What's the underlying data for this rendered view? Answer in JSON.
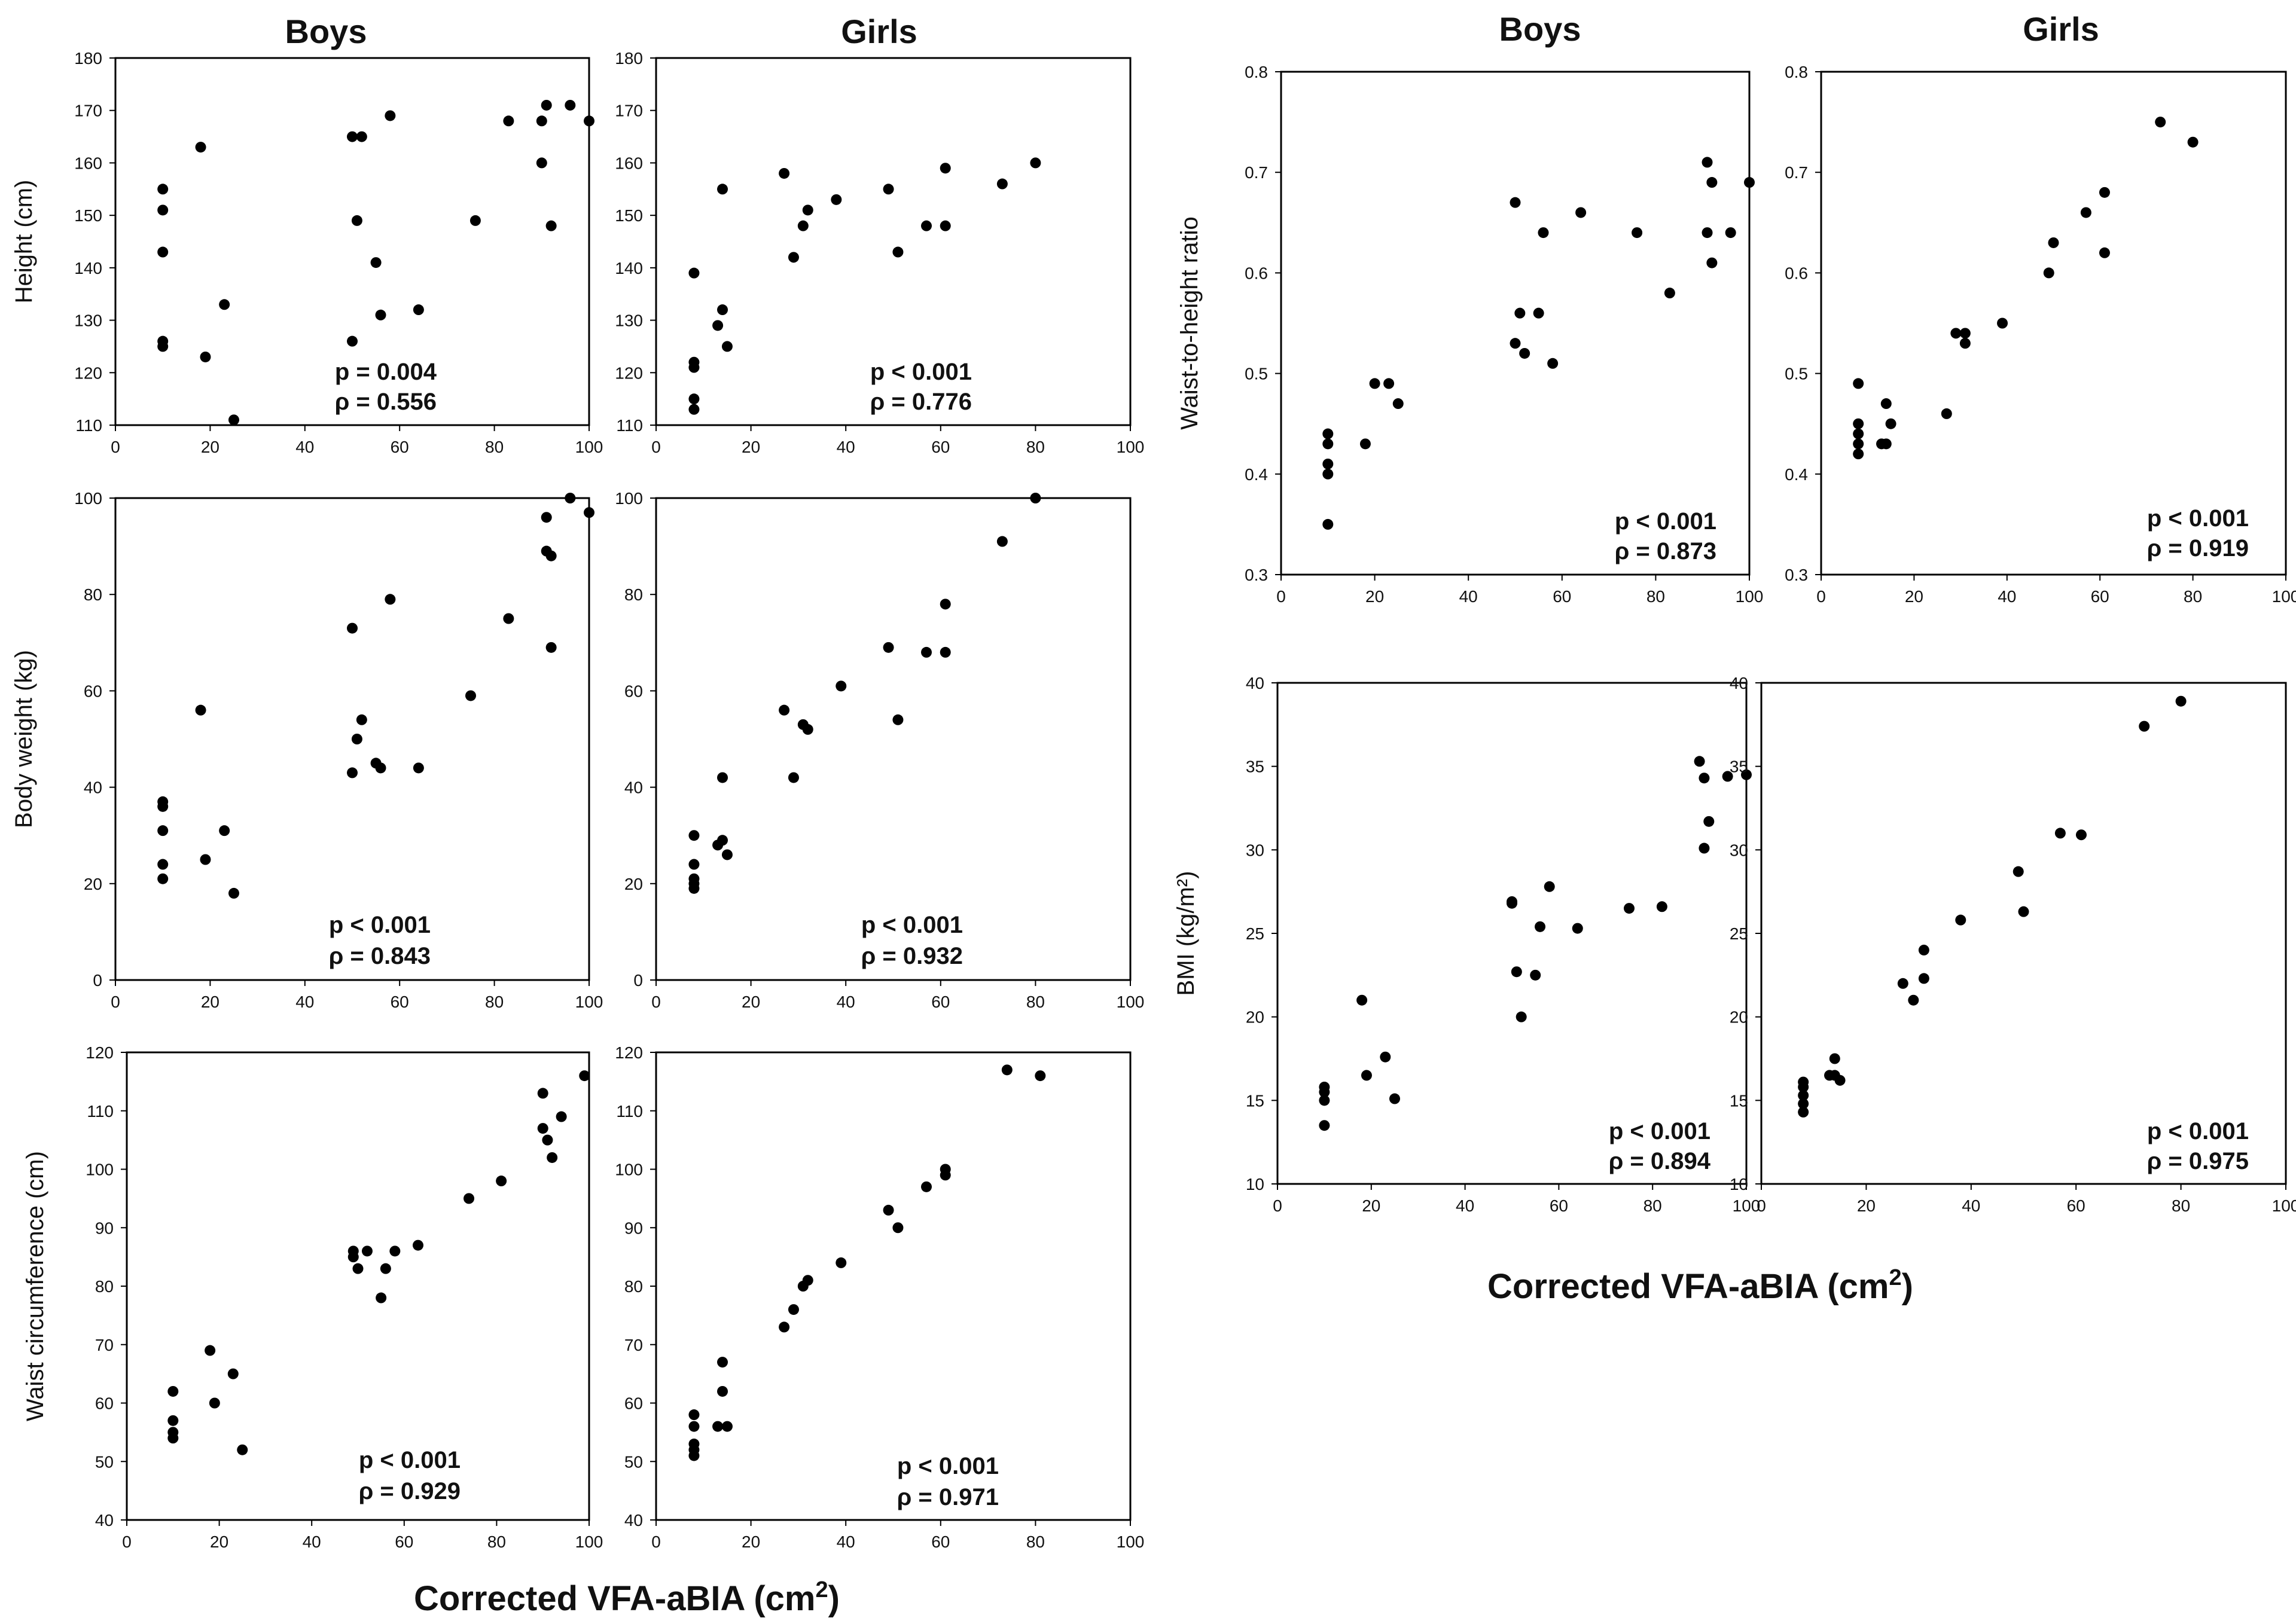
{
  "figure": {
    "column_titles": [
      {
        "boys": "Boys",
        "girls": "Girls"
      },
      {
        "boys": "Boys",
        "girls": "Girls"
      }
    ],
    "xlabels": [
      "Corrected VFA-aBIA (cm",
      "Corrected VFA-aBIA (cm"
    ],
    "xlabel_sup": "2",
    "xlabel_close": ")",
    "marker_color": "#000000",
    "frame_color": "#000000"
  },
  "chart_data": [
    {
      "id": "height-boys",
      "type": "scatter",
      "title": "Boys",
      "xlabel": "",
      "ylabel": "Height (cm)",
      "xlim": [
        0,
        100
      ],
      "ylim": [
        110,
        180
      ],
      "xticks": [
        0,
        20,
        40,
        60,
        80,
        100
      ],
      "yticks": [
        110,
        120,
        130,
        140,
        150,
        160,
        170,
        180
      ],
      "stat_p": "p = 0.004",
      "stat_rho": "ρ = 0.556",
      "points": [
        [
          10,
          155
        ],
        [
          10,
          151
        ],
        [
          10,
          143
        ],
        [
          10,
          126
        ],
        [
          10,
          125
        ],
        [
          18,
          163
        ],
        [
          19,
          123
        ],
        [
          23,
          133
        ],
        [
          25,
          111
        ],
        [
          50,
          165
        ],
        [
          50,
          126
        ],
        [
          51,
          149
        ],
        [
          52,
          165
        ],
        [
          55,
          141
        ],
        [
          56,
          131
        ],
        [
          58,
          169
        ],
        [
          64,
          132
        ],
        [
          76,
          149
        ],
        [
          83,
          168
        ],
        [
          90,
          168
        ],
        [
          90,
          160
        ],
        [
          91,
          171
        ],
        [
          92,
          148
        ],
        [
          96,
          171
        ],
        [
          100,
          168
        ]
      ]
    },
    {
      "id": "height-girls",
      "type": "scatter",
      "title": "Girls",
      "xlabel": "",
      "ylabel": "",
      "xlim": [
        0,
        100
      ],
      "ylim": [
        110,
        180
      ],
      "xticks": [
        0,
        20,
        40,
        60,
        80,
        100
      ],
      "yticks": [
        110,
        120,
        130,
        140,
        150,
        160,
        170,
        180
      ],
      "stat_p": "p < 0.001",
      "stat_rho": "ρ = 0.776",
      "points": [
        [
          8,
          139
        ],
        [
          8,
          122
        ],
        [
          8,
          121
        ],
        [
          8,
          115
        ],
        [
          8,
          113
        ],
        [
          13,
          129
        ],
        [
          14,
          155
        ],
        [
          14,
          132
        ],
        [
          15,
          125
        ],
        [
          27,
          158
        ],
        [
          29,
          142
        ],
        [
          31,
          148
        ],
        [
          32,
          151
        ],
        [
          38,
          153
        ],
        [
          49,
          155
        ],
        [
          51,
          143
        ],
        [
          57,
          148
        ],
        [
          61,
          159
        ],
        [
          61,
          148
        ],
        [
          73,
          156
        ],
        [
          80,
          160
        ]
      ]
    },
    {
      "id": "weight-boys",
      "type": "scatter",
      "title": "",
      "xlabel": "",
      "ylabel": "Body weight (kg)",
      "xlim": [
        0,
        100
      ],
      "ylim": [
        0,
        100
      ],
      "xticks": [
        0,
        20,
        40,
        60,
        80,
        100
      ],
      "yticks": [
        0,
        20,
        40,
        60,
        80,
        100
      ],
      "stat_p": "p < 0.001",
      "stat_rho": "ρ = 0.843",
      "points": [
        [
          10,
          37
        ],
        [
          10,
          36
        ],
        [
          10,
          31
        ],
        [
          10,
          24
        ],
        [
          10,
          21
        ],
        [
          18,
          56
        ],
        [
          19,
          25
        ],
        [
          23,
          31
        ],
        [
          25,
          18
        ],
        [
          50,
          73
        ],
        [
          50,
          43
        ],
        [
          51,
          50
        ],
        [
          52,
          54
        ],
        [
          55,
          45
        ],
        [
          56,
          44
        ],
        [
          58,
          79
        ],
        [
          64,
          44
        ],
        [
          75,
          59
        ],
        [
          83,
          75
        ],
        [
          91,
          96
        ],
        [
          91,
          89
        ],
        [
          92,
          88
        ],
        [
          92,
          69
        ],
        [
          96,
          100
        ],
        [
          100,
          97
        ]
      ]
    },
    {
      "id": "weight-girls",
      "type": "scatter",
      "title": "",
      "xlabel": "",
      "ylabel": "",
      "xlim": [
        0,
        100
      ],
      "ylim": [
        0,
        100
      ],
      "xticks": [
        0,
        20,
        40,
        60,
        80,
        100
      ],
      "yticks": [
        0,
        20,
        40,
        60,
        80,
        100
      ],
      "stat_p": "p < 0.001",
      "stat_rho": "ρ = 0.932",
      "points": [
        [
          8,
          30
        ],
        [
          8,
          24
        ],
        [
          8,
          21
        ],
        [
          8,
          20
        ],
        [
          8,
          19
        ],
        [
          13,
          28
        ],
        [
          14,
          42
        ],
        [
          14,
          29
        ],
        [
          15,
          26
        ],
        [
          27,
          56
        ],
        [
          29,
          42
        ],
        [
          31,
          53
        ],
        [
          32,
          52
        ],
        [
          39,
          61
        ],
        [
          49,
          69
        ],
        [
          51,
          54
        ],
        [
          57,
          68
        ],
        [
          61,
          78
        ],
        [
          61,
          68
        ],
        [
          73,
          91
        ],
        [
          80,
          100
        ]
      ]
    },
    {
      "id": "waist-boys",
      "type": "scatter",
      "title": "",
      "xlabel": "",
      "ylabel": "Waist circumference (cm)",
      "xlim": [
        0,
        100
      ],
      "ylim": [
        40,
        120
      ],
      "xticks": [
        0,
        20,
        40,
        60,
        80,
        100
      ],
      "yticks": [
        40,
        50,
        60,
        70,
        80,
        90,
        100,
        110,
        120
      ],
      "stat_p": "p < 0.001",
      "stat_rho": "ρ = 0.929",
      "points": [
        [
          10,
          62
        ],
        [
          10,
          57
        ],
        [
          10,
          55
        ],
        [
          10,
          54
        ],
        [
          18,
          69
        ],
        [
          19,
          60
        ],
        [
          23,
          65
        ],
        [
          25,
          52
        ],
        [
          49,
          86
        ],
        [
          49,
          85
        ],
        [
          50,
          83
        ],
        [
          52,
          86
        ],
        [
          55,
          78
        ],
        [
          56,
          83
        ],
        [
          58,
          86
        ],
        [
          63,
          87
        ],
        [
          74,
          95
        ],
        [
          81,
          98
        ],
        [
          90,
          113
        ],
        [
          90,
          107
        ],
        [
          91,
          105
        ],
        [
          92,
          102
        ],
        [
          94,
          109
        ],
        [
          99,
          116
        ]
      ]
    },
    {
      "id": "waist-girls",
      "type": "scatter",
      "title": "",
      "xlabel": "",
      "ylabel": "",
      "xlim": [
        0,
        100
      ],
      "ylim": [
        40,
        120
      ],
      "xticks": [
        0,
        20,
        40,
        60,
        80,
        100
      ],
      "yticks": [
        40,
        50,
        60,
        70,
        80,
        90,
        100,
        110,
        120
      ],
      "stat_p": "p < 0.001",
      "stat_rho": "ρ = 0.971",
      "points": [
        [
          8,
          58
        ],
        [
          8,
          56
        ],
        [
          8,
          53
        ],
        [
          8,
          52
        ],
        [
          8,
          51
        ],
        [
          13,
          56
        ],
        [
          14,
          67
        ],
        [
          14,
          62
        ],
        [
          15,
          56
        ],
        [
          27,
          73
        ],
        [
          29,
          76
        ],
        [
          31,
          80
        ],
        [
          32,
          81
        ],
        [
          39,
          84
        ],
        [
          49,
          93
        ],
        [
          51,
          90
        ],
        [
          57,
          97
        ],
        [
          61,
          100
        ],
        [
          61,
          99
        ],
        [
          74,
          117
        ],
        [
          81,
          116
        ]
      ]
    },
    {
      "id": "whtr-boys",
      "type": "scatter",
      "title": "Boys",
      "xlabel": "",
      "ylabel": "Waist-to-height ratio",
      "xlim": [
        0,
        100
      ],
      "ylim": [
        0.3,
        0.8
      ],
      "xticks": [
        0,
        20,
        40,
        60,
        80,
        100
      ],
      "yticks": [
        0.3,
        0.4,
        0.5,
        0.6,
        0.7,
        0.8
      ],
      "stat_p": "p < 0.001",
      "stat_rho": "ρ = 0.873",
      "points": [
        [
          10,
          0.44
        ],
        [
          10,
          0.43
        ],
        [
          10,
          0.41
        ],
        [
          10,
          0.4
        ],
        [
          10,
          0.35
        ],
        [
          18,
          0.43
        ],
        [
          20,
          0.49
        ],
        [
          23,
          0.49
        ],
        [
          25,
          0.47
        ],
        [
          50,
          0.67
        ],
        [
          50,
          0.53
        ],
        [
          51,
          0.56
        ],
        [
          52,
          0.52
        ],
        [
          55,
          0.56
        ],
        [
          56,
          0.64
        ],
        [
          58,
          0.51
        ],
        [
          64,
          0.66
        ],
        [
          76,
          0.64
        ],
        [
          83,
          0.58
        ],
        [
          91,
          0.71
        ],
        [
          91,
          0.64
        ],
        [
          92,
          0.61
        ],
        [
          92,
          0.69
        ],
        [
          96,
          0.64
        ],
        [
          100,
          0.69
        ]
      ]
    },
    {
      "id": "whtr-girls",
      "type": "scatter",
      "title": "Girls",
      "xlabel": "",
      "ylabel": "",
      "xlim": [
        0,
        100
      ],
      "ylim": [
        0.3,
        0.8
      ],
      "xticks": [
        0,
        20,
        40,
        60,
        80,
        100
      ],
      "yticks": [
        0.3,
        0.4,
        0.5,
        0.6,
        0.7,
        0.8
      ],
      "stat_p": "p < 0.001",
      "stat_rho": "ρ = 0.919",
      "points": [
        [
          8,
          0.49
        ],
        [
          8,
          0.45
        ],
        [
          8,
          0.44
        ],
        [
          8,
          0.43
        ],
        [
          8,
          0.42
        ],
        [
          13,
          0.43
        ],
        [
          14,
          0.47
        ],
        [
          14,
          0.43
        ],
        [
          15,
          0.45
        ],
        [
          27,
          0.46
        ],
        [
          29,
          0.54
        ],
        [
          31,
          0.54
        ],
        [
          31,
          0.53
        ],
        [
          39,
          0.55
        ],
        [
          49,
          0.6
        ],
        [
          50,
          0.63
        ],
        [
          57,
          0.66
        ],
        [
          61,
          0.68
        ],
        [
          61,
          0.62
        ],
        [
          73,
          0.75
        ],
        [
          80,
          0.73
        ]
      ]
    },
    {
      "id": "bmi-boys",
      "type": "scatter",
      "title": "",
      "xlabel": "",
      "ylabel": "BMI (kg/m²)",
      "xlim": [
        0,
        100
      ],
      "ylim": [
        10,
        40
      ],
      "xticks": [
        0,
        20,
        40,
        60,
        80,
        100
      ],
      "yticks": [
        10,
        15,
        20,
        25,
        30,
        35,
        40
      ],
      "stat_p": "p < 0.001",
      "stat_rho": "ρ = 0.894",
      "points": [
        [
          10,
          15.8
        ],
        [
          10,
          15.5
        ],
        [
          10,
          15
        ],
        [
          10,
          13.5
        ],
        [
          18,
          21
        ],
        [
          19,
          16.5
        ],
        [
          23,
          17.6
        ],
        [
          25,
          15.1
        ],
        [
          50,
          26.9
        ],
        [
          50,
          26.8
        ],
        [
          51,
          22.7
        ],
        [
          52,
          20
        ],
        [
          55,
          22.5
        ],
        [
          56,
          25.4
        ],
        [
          58,
          27.8
        ],
        [
          64,
          25.3
        ],
        [
          75,
          26.5
        ],
        [
          82,
          26.6
        ],
        [
          90,
          35.3
        ],
        [
          91,
          34.3
        ],
        [
          91,
          30.1
        ],
        [
          92,
          31.7
        ],
        [
          96,
          34.4
        ],
        [
          100,
          34.5
        ]
      ]
    },
    {
      "id": "bmi-girls",
      "type": "scatter",
      "title": "",
      "xlabel": "",
      "ylabel": "",
      "xlim": [
        0,
        100
      ],
      "ylim": [
        10,
        40
      ],
      "xticks": [
        0,
        20,
        40,
        60,
        80,
        100
      ],
      "yticks": [
        10,
        15,
        20,
        25,
        30,
        35,
        40
      ],
      "stat_p": "p < 0.001",
      "stat_rho": "ρ = 0.975",
      "points": [
        [
          8,
          16.1
        ],
        [
          8,
          15.8
        ],
        [
          8,
          15.3
        ],
        [
          8,
          14.8
        ],
        [
          8,
          14.3
        ],
        [
          13,
          16.5
        ],
        [
          14,
          17.5
        ],
        [
          14,
          16.5
        ],
        [
          15,
          16.2
        ],
        [
          27,
          22
        ],
        [
          29,
          21
        ],
        [
          31,
          24
        ],
        [
          31,
          22.3
        ],
        [
          38,
          25.8
        ],
        [
          49,
          28.7
        ],
        [
          50,
          26.3
        ],
        [
          57,
          31
        ],
        [
          61,
          30.9
        ],
        [
          73,
          37.4
        ],
        [
          80,
          38.9
        ]
      ]
    }
  ]
}
